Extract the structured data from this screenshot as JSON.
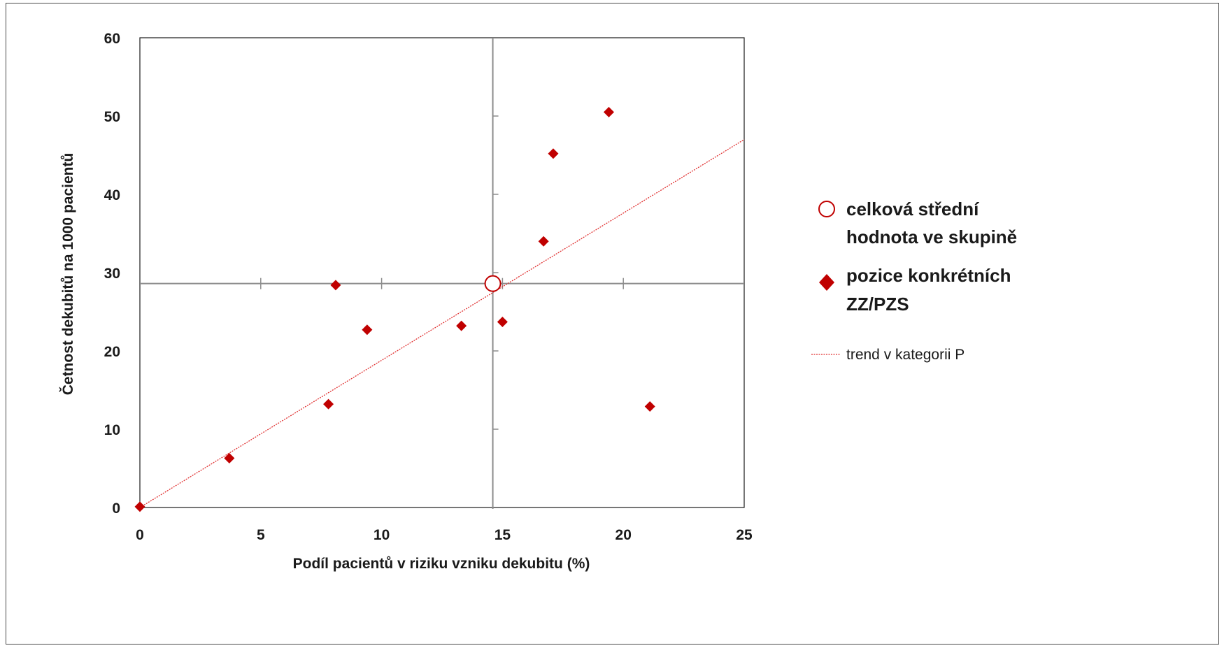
{
  "chart_data": {
    "type": "scatter",
    "xlabel": "Podíl pacientů v riziku vzniku dekubitu (%)",
    "ylabel": "Četnost dekubitů na 1000 pacientů",
    "xlim": [
      0,
      25
    ],
    "ylim": [
      0,
      60
    ],
    "x_ticks": [
      0,
      5,
      10,
      15,
      20,
      25
    ],
    "y_ticks": [
      0,
      10,
      20,
      30,
      40,
      50,
      60
    ],
    "x_tick_labels": [
      "0",
      "5",
      "10",
      "15",
      "20",
      "25"
    ],
    "y_tick_labels": [
      "0",
      "10",
      "20",
      "30",
      "40",
      "50",
      "60"
    ],
    "grid": false,
    "legend_position": "right",
    "mean_point": {
      "name_lines": [
        "celková střední",
        "hodnota ve skupině"
      ],
      "x": 14.6,
      "y": 28.6,
      "color": "#c00000"
    },
    "series": [
      {
        "name_lines": [
          "pozice konkrétních",
          "ZZ/PZS"
        ],
        "color": "#c00000",
        "marker": "diamond",
        "x": [
          0.0,
          3.7,
          7.8,
          8.1,
          9.4,
          13.3,
          15.0,
          16.7,
          17.1,
          19.4,
          21.1
        ],
        "y": [
          0.1,
          6.3,
          13.2,
          28.4,
          22.7,
          23.2,
          23.7,
          34.0,
          45.2,
          50.5,
          12.9
        ]
      }
    ],
    "trend": {
      "name": "trend v kategorii P",
      "color": "#e03030",
      "style": "dashed",
      "points": [
        [
          0,
          0
        ],
        [
          25,
          47.0
        ]
      ]
    }
  }
}
